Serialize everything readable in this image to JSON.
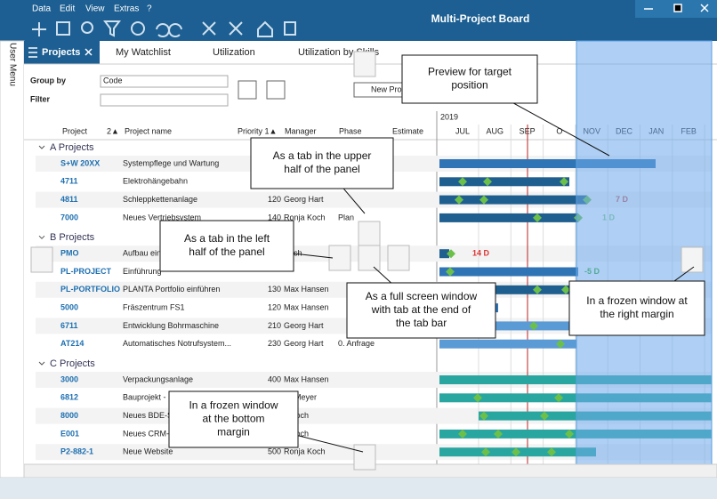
{
  "menu": [
    "Data",
    "Edit",
    "View",
    "Extras",
    "?"
  ],
  "title": "Multi-Project Board",
  "side_menu": "User Menu",
  "tabs": [
    "Projects",
    "My Watchlist",
    "Utilization",
    "Utilization by Skills"
  ],
  "filters": {
    "group_by_label": "Group by",
    "group_by_value": "Code",
    "filter_label": "Filter"
  },
  "new_button": "New Proj",
  "columns": [
    "Project",
    "2▲",
    "Project name",
    "Priority 1▲",
    "Manager",
    "Phase",
    "Estimate"
  ],
  "gantt": {
    "year": "2019",
    "months": [
      "JUL",
      "AUG",
      "SEP",
      "O",
      "NOV",
      "DEC",
      "JAN",
      "FEB"
    ]
  },
  "groups": [
    {
      "label": "A Projects",
      "rows": [
        {
          "code": "S+W 20XX",
          "name": "Systempflege und Wartung"
        },
        {
          "code": "4711",
          "name": "Elektrohängebahn"
        },
        {
          "code": "4811",
          "name": "Schleppkettenanlage",
          "priority": 120,
          "manager": "Georg Hart",
          "gantt_label": "7 D"
        },
        {
          "code": "7000",
          "name": "Neues Vertriebsystem",
          "priority": 140,
          "manager": "Ronja Koch",
          "phase": "Plan",
          "gantt_label": "1 D"
        }
      ]
    },
    {
      "label": "B Projects",
      "rows": [
        {
          "code": "PMO",
          "name": "Aufbau ein",
          "manager": "Koch",
          "gantt_label": "14 D"
        },
        {
          "code": "PL-PROJECT",
          "name": "Einführung",
          "gantt_label": "-5 D"
        },
        {
          "code": "PL-PORTFOLIO",
          "name": "PLANTA Portfolio einführen",
          "priority": 130,
          "manager": "Max Hansen"
        },
        {
          "code": "5000",
          "name": "Fräszentrum FS1",
          "priority": 120,
          "manager": "Max Hansen"
        },
        {
          "code": "6711",
          "name": "Entwicklung Bohrmaschine",
          "priority": 210,
          "manager": "Georg Hart"
        },
        {
          "code": "AT214",
          "name": "Automatisches Notrufsystem...",
          "priority": 230,
          "manager": "Georg Hart",
          "phase": "0. Anfrage"
        }
      ]
    },
    {
      "label": "C Projects",
      "rows": [
        {
          "code": "3000",
          "name": "Verpackungsanlage",
          "priority": 400,
          "manager": "Max Hansen"
        },
        {
          "code": "6812",
          "name": "Bauprojekt -",
          "manager": "olf Meyer"
        },
        {
          "code": "8000",
          "name": "Neues BDE-S",
          "manager": "a Koch"
        },
        {
          "code": "E001",
          "name": "Neues CRM-S",
          "manager": "a Koch"
        },
        {
          "code": "P2-882-1",
          "name": "Neue Website",
          "priority": 500,
          "manager": "Ronja Koch"
        }
      ]
    }
  ],
  "callouts": [
    {
      "lines": [
        "Preview for target",
        "position"
      ]
    },
    {
      "lines": [
        "As a tab in the upper",
        "half of the panel"
      ]
    },
    {
      "lines": [
        "As a tab in the left",
        "half of the panel"
      ]
    },
    {
      "lines": [
        "As a full screen window",
        "with tab at the end of",
        "the tab bar"
      ]
    },
    {
      "lines": [
        "In a frozen window at",
        "the right margin"
      ]
    },
    {
      "lines": [
        "In a frozen window",
        "at the bottom",
        "margin"
      ]
    }
  ]
}
